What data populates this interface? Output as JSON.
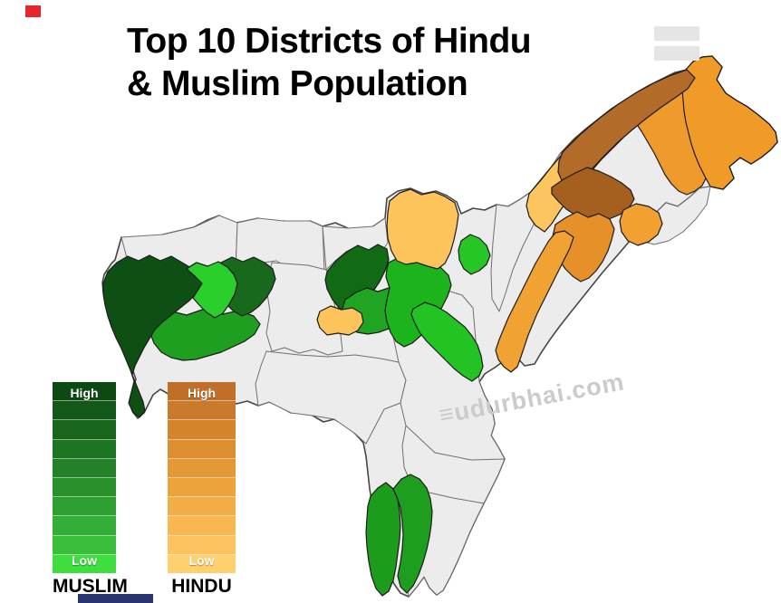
{
  "title": {
    "line1": "Top 10 Districts of Hindu",
    "line2": "& Muslim Population"
  },
  "watermark": {
    "text": "≡udurbhai.com"
  },
  "header_icon": {
    "bar_color": "#e5e5e5"
  },
  "decorations": {
    "red_square_color": "#e8252b",
    "navy_bar_color": "#2a3570"
  },
  "legends": {
    "muslim": {
      "label": "MUSLIM",
      "high": "High",
      "low": "Low",
      "bands": [
        "#0d4a13",
        "#125818",
        "#18661d",
        "#1d7422",
        "#238227",
        "#28912c",
        "#2e9f31",
        "#33ae36",
        "#39bd3b",
        "#3ede3e"
      ]
    },
    "hindu": {
      "label": "HINDU",
      "high": "High",
      "low": "Low",
      "bands": [
        "#c06f28",
        "#ca7a2a",
        "#d4852c",
        "#dd8f30",
        "#e59935",
        "#eca33c",
        "#f3ad46",
        "#f8b751",
        "#fcc25e",
        "#ffd06e"
      ]
    }
  },
  "map": {
    "base_fill": "#ececec",
    "base_stroke": "#474747",
    "grey_stroke": "#6f6f6f",
    "colored_stroke": "#1c1c1c",
    "districts": [
      {
        "id": "grey-north-west",
        "group": "grey",
        "color": "#ececec"
      },
      {
        "id": "grey-north-mid",
        "group": "grey",
        "color": "#ececec"
      },
      {
        "id": "grey-north-east",
        "group": "grey",
        "color": "#ececec"
      },
      {
        "id": "grey-kamrup",
        "group": "grey",
        "color": "#ececec"
      },
      {
        "id": "grey-south-kamrup",
        "group": "grey",
        "color": "#ececec"
      },
      {
        "id": "grey-karbi",
        "group": "grey",
        "color": "#ececec"
      },
      {
        "id": "grey-dima",
        "group": "grey",
        "color": "#ececec"
      },
      {
        "id": "grey-cachar",
        "group": "grey",
        "color": "#ececec"
      },
      {
        "id": "grey-arm-west",
        "group": "grey",
        "color": "#ececec"
      },
      {
        "id": "muslim-goalpara",
        "group": "muslim",
        "color": "#1f9f20"
      },
      {
        "id": "muslim-dhubri",
        "group": "muslim",
        "color": "#0e4f13"
      },
      {
        "id": "muslim-barpeta",
        "group": "muslim",
        "color": "#18691c"
      },
      {
        "id": "muslim-bright-west",
        "group": "muslim",
        "color": "#2bcf2b"
      },
      {
        "id": "muslim-darrang",
        "group": "muslim",
        "color": "#116a14"
      },
      {
        "id": "muslim-marigaon",
        "group": "muslim",
        "color": "#1fa521"
      },
      {
        "id": "muslim-nagaon",
        "group": "muslim",
        "color": "#1cb31c"
      },
      {
        "id": "muslim-south-arm",
        "group": "muslim",
        "color": "#22c322"
      },
      {
        "id": "muslim-small-ne",
        "group": "muslim",
        "color": "#25c625"
      },
      {
        "id": "muslim-karimganj",
        "group": "muslim",
        "color": "#1d9b1d"
      },
      {
        "id": "muslim-hailakandi",
        "group": "muslim",
        "color": "#1e9e1e"
      },
      {
        "id": "hindu-sonitpur",
        "group": "hindu",
        "color": "#fcc45a"
      },
      {
        "id": "hindu-small-west",
        "group": "hindu",
        "color": "#fcc45a"
      },
      {
        "id": "hindu-lakhimpur",
        "group": "hindu",
        "color": "#fcc55e"
      },
      {
        "id": "hindu-dibrugarh",
        "group": "hindu",
        "color": "#ee9a2d"
      },
      {
        "id": "hindu-tinsukia",
        "group": "hindu",
        "color": "#f09b28"
      },
      {
        "id": "hindu-dhemaji",
        "group": "hindu",
        "color": "#b26b28"
      },
      {
        "id": "grey-arm-east",
        "group": "grey",
        "color": "#ececec"
      },
      {
        "id": "hindu-dark-brown",
        "group": "hindu",
        "color": "#a55f1f"
      },
      {
        "id": "hindu-small-mid",
        "group": "hindu",
        "color": "#f2a130"
      },
      {
        "id": "hindu-sivasagar",
        "group": "hindu",
        "color": "#e6902a"
      },
      {
        "id": "hindu-jorhat",
        "group": "hindu",
        "color": "#f0a233"
      }
    ]
  }
}
